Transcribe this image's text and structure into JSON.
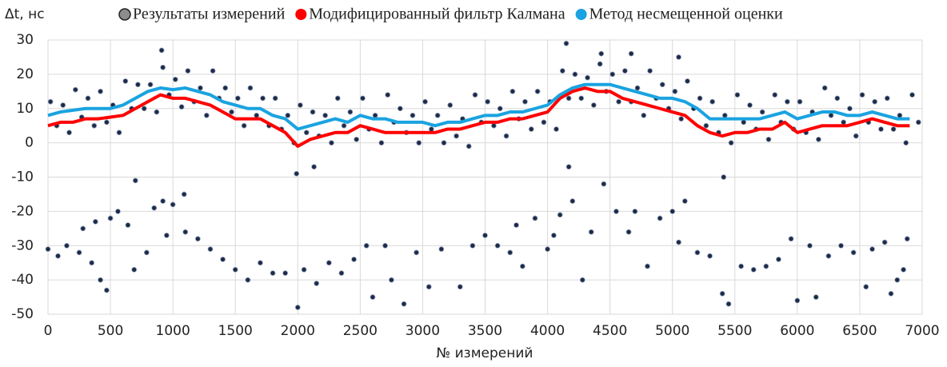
{
  "chart_data": {
    "type": "scatter_line",
    "y_label": "Δt, нс",
    "x_label": "№ измерений",
    "xlim": [
      0,
      7000
    ],
    "xticks": [
      0,
      500,
      1000,
      1500,
      2000,
      2500,
      3000,
      3500,
      4000,
      4500,
      5000,
      5500,
      6000,
      6500,
      7000
    ],
    "ylim": [
      -50,
      30
    ],
    "yticks": [
      -50,
      -40,
      -30,
      -20,
      -10,
      0,
      10,
      20,
      30
    ],
    "grid": true,
    "x": [
      0,
      100,
      200,
      300,
      400,
      500,
      600,
      700,
      800,
      900,
      1000,
      1100,
      1200,
      1300,
      1400,
      1500,
      1600,
      1700,
      1800,
      1900,
      2000,
      2100,
      2200,
      2300,
      2400,
      2500,
      2600,
      2700,
      2800,
      2900,
      3000,
      3100,
      3200,
      3300,
      3400,
      3500,
      3600,
      3700,
      3800,
      3900,
      4000,
      4100,
      4200,
      4300,
      4400,
      4500,
      4600,
      4700,
      4800,
      4900,
      5000,
      5100,
      5200,
      5300,
      5400,
      5500,
      5600,
      5700,
      5800,
      5900,
      6000,
      6100,
      6200,
      6300,
      6400,
      6500,
      6600,
      6700,
      6800,
      6900
    ],
    "series": [
      {
        "name": "Результаты измерений",
        "kind": "points",
        "color": "#1c2b4a",
        "legend_color": "#8c8c8c",
        "x": [
          20,
          120,
          220,
          320,
          420,
          520,
          620,
          720,
          820,
          920,
          1020,
          1120,
          1220,
          1320,
          1420,
          1520,
          1620,
          1720,
          1820,
          1920,
          2020,
          2120,
          2220,
          2320,
          2420,
          2520,
          2620,
          2720,
          2820,
          2920,
          3020,
          3120,
          3220,
          3320,
          3420,
          3520,
          3620,
          3720,
          3820,
          3920,
          4020,
          4120,
          4220,
          4320,
          4420,
          4520,
          4620,
          4720,
          4820,
          4920,
          5020,
          5120,
          5220,
          5320,
          5420,
          5520,
          5620,
          5720,
          5820,
          5920,
          6020,
          6120,
          6220,
          6320,
          6420,
          6520,
          6620,
          6720,
          6820,
          6920,
          70,
          170,
          270,
          370,
          470,
          570,
          670,
          770,
          870,
          970,
          1070,
          1170,
          1270,
          1370,
          1470,
          1570,
          1670,
          1770,
          1870,
          1970,
          2070,
          2170,
          2270,
          2370,
          2470,
          2570,
          2670,
          2770,
          2870,
          2970,
          3070,
          3170,
          3270,
          3370,
          3470,
          3570,
          3670,
          3770,
          3870,
          3970,
          4070,
          4170,
          4270,
          4370,
          4470,
          4570,
          4670,
          4770,
          4870,
          4970,
          5070,
          5170,
          5270,
          5370,
          5470,
          5570,
          5670,
          5770,
          5870,
          5970,
          6070,
          6170,
          6270,
          6370,
          6470,
          6570,
          6670,
          6770,
          6870,
          6970,
          0,
          80,
          150,
          250,
          350,
          420,
          470,
          280,
          380,
          500,
          560,
          640,
          700,
          690,
          790,
          850,
          920,
          1000,
          1090,
          950,
          1100,
          1200,
          1300,
          1400,
          1500,
          1600,
          1700,
          1800,
          1900,
          2000,
          2050,
          2150,
          2250,
          2350,
          2450,
          2550,
          2600,
          2700,
          2750,
          2850,
          2950,
          3050,
          3150,
          3300,
          3400,
          3500,
          3600,
          3700,
          3800,
          3750,
          3900,
          4000,
          4050,
          4100,
          4170,
          4200,
          4280,
          4350,
          4450,
          4550,
          4650,
          4700,
          4800,
          4900,
          5000,
          5050,
          5100,
          5200,
          5300,
          5400,
          5450,
          5550,
          5650,
          5750,
          5850,
          5950,
          6000,
          6100,
          6150,
          6250,
          6350,
          6450,
          6550,
          6600,
          6700,
          6750,
          6800,
          6880,
          6850,
          910,
          4150,
          4430,
          5050,
          4670,
          1990,
          2130,
          5410
        ],
        "values": [
          12,
          11,
          15.5,
          13,
          15,
          11,
          18,
          17,
          17,
          22,
          18.5,
          21,
          16,
          21,
          16,
          13,
          16,
          13,
          13,
          8,
          11,
          9,
          8,
          13,
          9,
          13,
          8,
          14,
          10,
          8,
          12,
          8,
          11,
          7,
          14,
          12,
          10,
          15,
          12,
          15,
          12,
          21,
          20,
          19,
          23,
          20,
          21,
          16,
          21,
          17,
          15,
          18,
          13,
          12,
          8,
          14,
          11,
          9,
          14,
          12,
          12,
          9,
          16,
          13,
          10,
          14,
          12,
          13,
          8,
          14,
          5,
          3,
          7.5,
          5,
          6,
          3,
          10,
          10,
          9,
          14,
          10.5,
          12,
          8,
          13,
          9,
          5,
          8,
          5,
          4,
          0,
          3,
          2,
          0,
          5,
          1,
          4,
          0,
          6,
          3,
          0,
          4,
          0,
          2,
          -1,
          6,
          5,
          2,
          7,
          4,
          6,
          4,
          13,
          13,
          11,
          15,
          12,
          12,
          8,
          13,
          10,
          7,
          10,
          5,
          3,
          0,
          6,
          4,
          1,
          6,
          4,
          3,
          1,
          8,
          6,
          2,
          6,
          4,
          4,
          0,
          6,
          -31,
          -33,
          -30,
          -32,
          -35,
          -40,
          -43,
          -25,
          -23,
          -22,
          -20,
          -24,
          -11,
          -37,
          -32,
          -19,
          -17,
          -18,
          -15,
          -27,
          -26,
          -28,
          -31,
          -34,
          -37,
          -40,
          -35,
          -38,
          -38,
          -48,
          -37,
          -41,
          -35,
          -38,
          -34,
          -30,
          -45,
          -30,
          -40,
          -47,
          -32,
          -42,
          -31,
          -42,
          -30,
          -27,
          -30,
          -32,
          -36,
          -24,
          -22,
          -31,
          -27,
          -21,
          -7,
          -17,
          -40,
          -26,
          -12,
          -20,
          -26,
          -20,
          -36,
          -22,
          -20,
          -29,
          -17,
          -32,
          -33,
          -44,
          -47,
          -36,
          -37,
          -36,
          -34,
          -28,
          -46,
          -30,
          -45,
          -33,
          -30,
          -32,
          -42,
          -31,
          -29,
          -44,
          -40,
          -28,
          -37,
          27,
          29,
          26,
          25,
          26,
          -9,
          -7,
          -10
        ]
      },
      {
        "name": "Модифицированный фильтр Калмана",
        "kind": "line",
        "color": "#ff0000",
        "values": [
          5,
          6,
          6,
          7,
          7,
          7.5,
          8,
          10,
          12,
          14,
          13,
          13,
          12,
          11,
          9,
          7,
          7,
          7,
          5,
          3,
          -1,
          1,
          2,
          3,
          3,
          5,
          4,
          3,
          3,
          3,
          3,
          3,
          4,
          4,
          5,
          6,
          6,
          7,
          7,
          8,
          9,
          13,
          15,
          16,
          15,
          15,
          13,
          12,
          11,
          10,
          9,
          8,
          5,
          3,
          2,
          3,
          3,
          4,
          4,
          6,
          3,
          4,
          5,
          5,
          5,
          6,
          7,
          6,
          5,
          5
        ]
      },
      {
        "name": "Метод несмещенной оценки",
        "kind": "line",
        "color": "#1aa3e0",
        "values": [
          8,
          9,
          9.5,
          10,
          10,
          10,
          11,
          13,
          15,
          16,
          15.5,
          16,
          15,
          14,
          12,
          11,
          10,
          10,
          8,
          7,
          4,
          5,
          6,
          7,
          6,
          8,
          7,
          7,
          6,
          6,
          6,
          5,
          6,
          6,
          7,
          8,
          8,
          9,
          9,
          10,
          11,
          14,
          16,
          17,
          17,
          17,
          16,
          15,
          14,
          13,
          13,
          12,
          10,
          7,
          7,
          7,
          7,
          7,
          8,
          9,
          7,
          8,
          9,
          9,
          8,
          8,
          9,
          8,
          7,
          7
        ]
      }
    ]
  }
}
